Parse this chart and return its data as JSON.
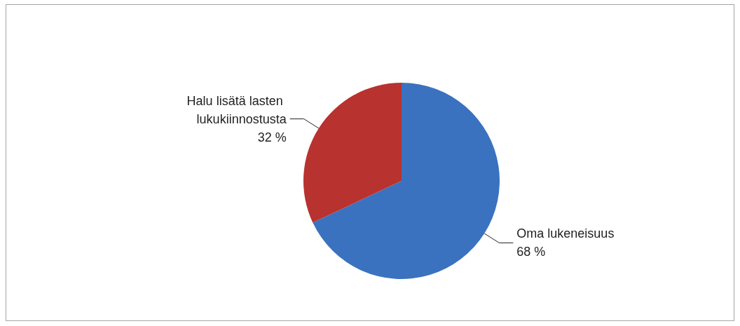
{
  "chart_data": {
    "type": "pie",
    "categories": [
      "Oma lukeneisuus",
      "Halu lisätä lasten lukukiinnostusta"
    ],
    "values": [
      68,
      32
    ],
    "colors": [
      "#3a72bf",
      "#b8322f"
    ],
    "value_labels": [
      "68 %",
      "32 %"
    ],
    "legend": false
  }
}
